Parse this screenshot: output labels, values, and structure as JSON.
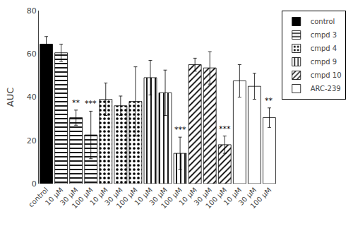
{
  "chart_data": {
    "type": "bar",
    "ylabel": "AUC",
    "categories": [
      "control",
      "10 μM",
      "30 μM",
      "100 μM",
      "10 μM",
      "30 μM",
      "100 μM",
      "10 μM",
      "30 μM",
      "100 μM",
      "10 μM",
      "30 μM",
      "100 μM",
      "10 μM",
      "30 μM",
      "100 μM"
    ],
    "series": [
      {
        "name": "control",
        "color": "#000000",
        "values": [
          64.5,
          null,
          null,
          null,
          null,
          null,
          null,
          null,
          null,
          null,
          null,
          null,
          null,
          null,
          null,
          null
        ],
        "errors": [
          3.5,
          null,
          null,
          null,
          null,
          null,
          null,
          null,
          null,
          null,
          null,
          null,
          null,
          null,
          null,
          null
        ]
      },
      {
        "name": "cmpd 3",
        "color": "#ffffff",
        "values": [
          null,
          60.5,
          30.5,
          22.5,
          null,
          null,
          null,
          null,
          null,
          null,
          null,
          null,
          null,
          null,
          null,
          null
        ],
        "errors": [
          null,
          4.0,
          3.5,
          11.0,
          null,
          null,
          null,
          null,
          null,
          null,
          null,
          null,
          null,
          null,
          null,
          null
        ]
      },
      {
        "name": "cmpd 4",
        "color": "#ffffff",
        "values": [
          null,
          null,
          null,
          null,
          39.0,
          36.0,
          38.0,
          null,
          null,
          null,
          null,
          null,
          null,
          null,
          null,
          null
        ],
        "errors": [
          null,
          null,
          null,
          null,
          7.5,
          4.5,
          16.0,
          null,
          null,
          null,
          null,
          null,
          null,
          null,
          null,
          null
        ]
      },
      {
        "name": "cmpd 9",
        "color": "#ffffff",
        "values": [
          null,
          null,
          null,
          null,
          null,
          null,
          null,
          49.0,
          42.0,
          14.0,
          null,
          null,
          null,
          null,
          null,
          null
        ],
        "errors": [
          null,
          null,
          null,
          null,
          null,
          null,
          null,
          8.0,
          10.5,
          7.5,
          null,
          null,
          null,
          null,
          null,
          null
        ]
      },
      {
        "name": "cmpd 10",
        "color": "#606060",
        "values": [
          null,
          null,
          null,
          null,
          null,
          null,
          null,
          null,
          null,
          null,
          55.0,
          53.5,
          18.0,
          null,
          null,
          null
        ],
        "errors": [
          null,
          null,
          null,
          null,
          null,
          null,
          null,
          null,
          null,
          null,
          3.0,
          7.5,
          4.0,
          null,
          null,
          null
        ]
      },
      {
        "name": "ARC-239",
        "color": "#ffffff",
        "values": [
          null,
          null,
          null,
          null,
          null,
          null,
          null,
          null,
          null,
          null,
          null,
          null,
          null,
          47.5,
          45.0,
          30.5
        ],
        "errors": [
          null,
          null,
          null,
          null,
          null,
          null,
          null,
          null,
          null,
          null,
          null,
          null,
          null,
          7.5,
          6.0,
          4.5
        ]
      }
    ],
    "annotations": [
      {
        "x": 2,
        "text": "**"
      },
      {
        "x": 3,
        "text": "***"
      },
      {
        "x": 9,
        "text": "***"
      },
      {
        "x": 12,
        "text": "***"
      },
      {
        "x": 15,
        "text": "**"
      }
    ],
    "ylim": [
      0,
      80
    ],
    "yticks": [
      0,
      20,
      40,
      60,
      80
    ],
    "grid": false,
    "legend": "upper right"
  }
}
